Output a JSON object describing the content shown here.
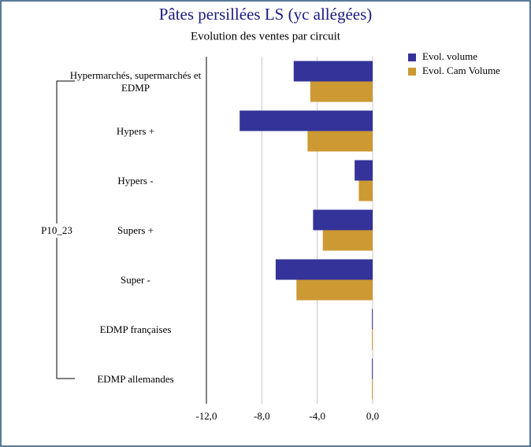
{
  "chart_data": {
    "type": "barh",
    "title": "Pâtes persillées LS (yc allégées)",
    "subtitle": "Evolution des ventes par circuit",
    "group_label": "P10_23",
    "categories": [
      "Hypermarchés, supermarchés et EDMP",
      "Hypers +",
      "Hypers -",
      "Supers +",
      "Super -",
      "EDMP françaises",
      "EDMP allemandes"
    ],
    "series": [
      {
        "name": "Evol. volume",
        "color": "#333399",
        "values": [
          -5.7,
          -9.6,
          -1.3,
          -4.3,
          -7.0,
          -0.05,
          -0.05
        ]
      },
      {
        "name": "Evol. Cam Volume",
        "color": "#cc9933",
        "values": [
          -4.5,
          -4.7,
          -1.0,
          -3.6,
          -5.5,
          -0.05,
          -0.05
        ]
      }
    ],
    "xlim": [
      -12,
      0
    ],
    "xticks": [
      {
        "value": -12,
        "label": "-12,0"
      },
      {
        "value": -8,
        "label": "-8,0"
      },
      {
        "value": -4,
        "label": "-4,0"
      },
      {
        "value": 0,
        "label": "0,0"
      }
    ],
    "grid": true,
    "legend": "top-right"
  }
}
